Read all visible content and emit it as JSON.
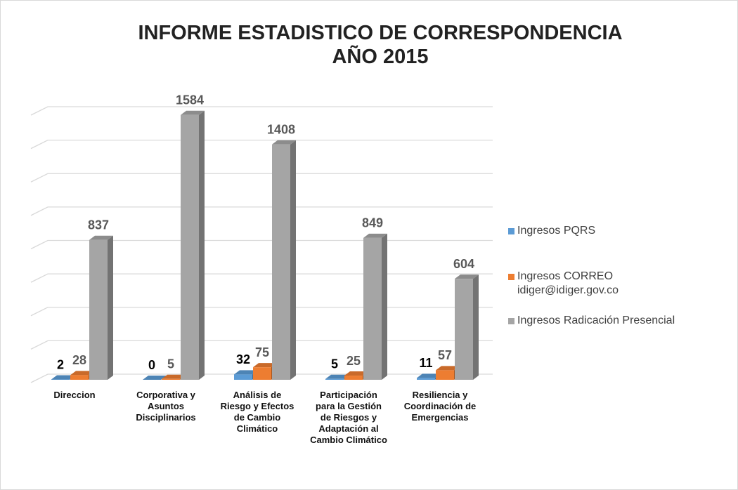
{
  "chart_data": {
    "type": "bar3d",
    "title": "INFORME ESTADISTICO DE CORRESPONDENCIA",
    "subtitle": "AÑO 2015",
    "categories": [
      "Direccion",
      "Corporativa y Asuntos Disciplinarios",
      "Análisis de Riesgo y Efectos de Cambio Climático",
      "Participación para la Gestión de Riesgos y Adaptación al Cambio Climático",
      "Resiliencia y Coordinación de Emergencias"
    ],
    "series": [
      {
        "name": "Ingresos PQRS",
        "color": "#5b9bd5",
        "label_color": "#000000",
        "values": [
          2,
          0,
          32,
          5,
          11
        ]
      },
      {
        "name": "Ingresos CORREO idiger@idiger.gov.co",
        "color": "#ed7d31",
        "label_color": "#595959",
        "values": [
          28,
          5,
          75,
          25,
          57
        ]
      },
      {
        "name": "Ingresos Radicación Presencial",
        "color": "#a5a5a5",
        "label_color": "#595959",
        "values": [
          837,
          1584,
          1408,
          849,
          604
        ]
      }
    ],
    "ylim": [
      0,
      1600
    ],
    "yticks": [
      0,
      200,
      400,
      600,
      800,
      1000,
      1200,
      1400,
      1600
    ],
    "grid": true,
    "legend": "right"
  }
}
